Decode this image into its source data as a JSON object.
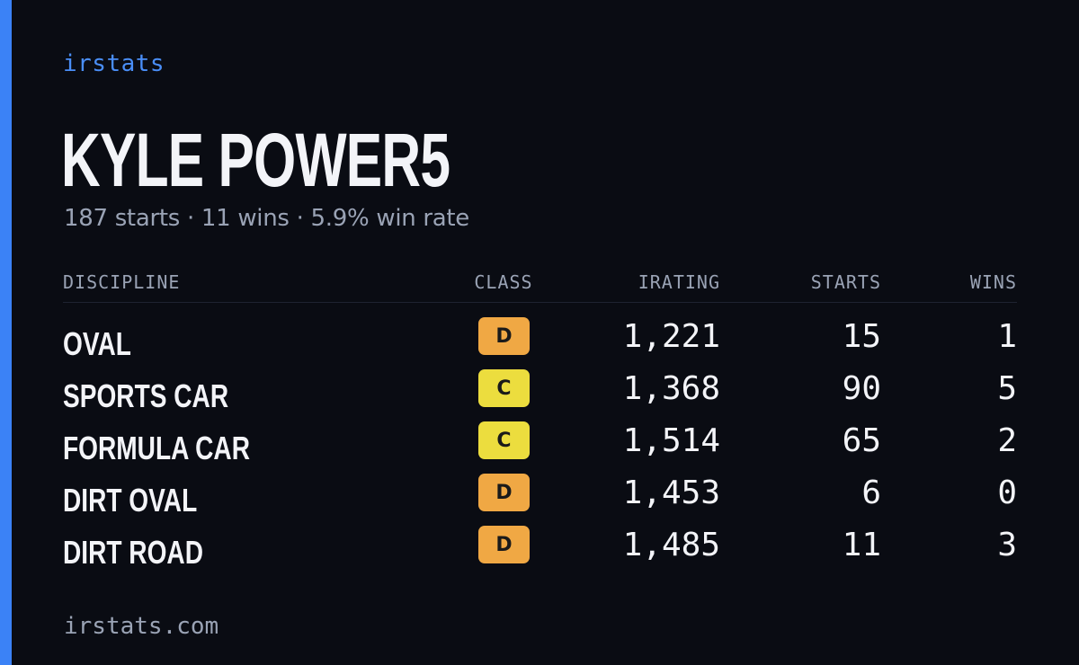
{
  "brand": "irstats",
  "driver_name": "KYLE POWER5",
  "summary": "187 starts · 11 wins · 5.9% win rate",
  "table": {
    "headers": {
      "discipline": "DISCIPLINE",
      "class": "CLASS",
      "irating": "IRATING",
      "starts": "STARTS",
      "wins": "WINS"
    },
    "rows": [
      {
        "discipline": "OVAL",
        "class": "D",
        "class_color": "#f0a844",
        "irating": "1,221",
        "starts": "15",
        "wins": "1"
      },
      {
        "discipline": "SPORTS CAR",
        "class": "C",
        "class_color": "#ecdd3e",
        "irating": "1,368",
        "starts": "90",
        "wins": "5"
      },
      {
        "discipline": "FORMULA CAR",
        "class": "C",
        "class_color": "#ecdd3e",
        "irating": "1,514",
        "starts": "65",
        "wins": "2"
      },
      {
        "discipline": "DIRT OVAL",
        "class": "D",
        "class_color": "#f0a844",
        "irating": "1,453",
        "starts": "6",
        "wins": "0"
      },
      {
        "discipline": "DIRT ROAD",
        "class": "D",
        "class_color": "#f0a844",
        "irating": "1,485",
        "starts": "11",
        "wins": "3"
      }
    ]
  },
  "footer": "irstats.com",
  "colors": {
    "background": "#0a0c13",
    "accent": "#3b82f6",
    "brand": "#4a8ef7",
    "muted": "#9aa3b5",
    "text": "#f3f4f8"
  }
}
